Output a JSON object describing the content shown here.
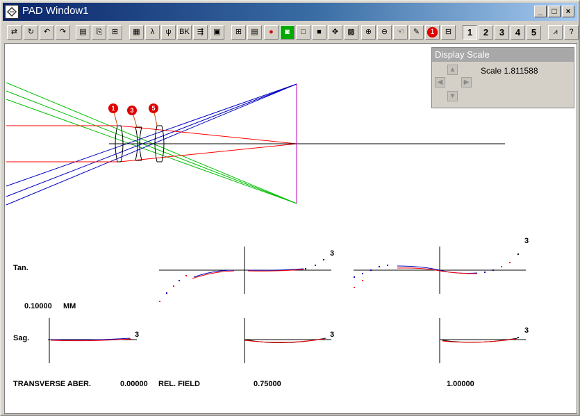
{
  "window": {
    "title": "PAD Window1"
  },
  "window_controls": {
    "minimize": "_",
    "maximize": "□",
    "close": "×"
  },
  "toolbar": {
    "buttons": [
      {
        "name": "adjust-icon",
        "glyph": "⇄"
      },
      {
        "name": "refresh-icon",
        "glyph": "↻"
      },
      {
        "name": "undo-icon",
        "glyph": "↶"
      },
      {
        "name": "redo-icon",
        "glyph": "↷"
      },
      {
        "name": "print-icon",
        "glyph": "▤"
      },
      {
        "name": "copy-icon",
        "glyph": "⎘"
      },
      {
        "name": "fit-icon",
        "glyph": "⊞"
      },
      {
        "name": "lens-data-icon",
        "glyph": "▦"
      },
      {
        "name": "wavelength-icon",
        "glyph": "λ"
      },
      {
        "name": "field-icon",
        "glyph": "ψ"
      },
      {
        "name": "bk7-icon",
        "glyph": "BK"
      },
      {
        "name": "tree-icon",
        "glyph": "⇶"
      },
      {
        "name": "film-icon",
        "glyph": "▣"
      },
      {
        "name": "grid-icon",
        "glyph": "⊞"
      },
      {
        "name": "table-icon",
        "glyph": "▤"
      },
      {
        "name": "dots-icon",
        "glyph": "●"
      },
      {
        "name": "camera-icon",
        "glyph": "◙"
      },
      {
        "name": "white-square-icon",
        "glyph": "□"
      },
      {
        "name": "black-square-icon",
        "glyph": "■"
      },
      {
        "name": "move-icon",
        "glyph": "✥"
      },
      {
        "name": "gray-square-icon",
        "glyph": "▩"
      },
      {
        "name": "zoom-in-icon",
        "glyph": "⊕"
      },
      {
        "name": "zoom-out-icon",
        "glyph": "⊖"
      },
      {
        "name": "pan-icon",
        "glyph": "☜"
      },
      {
        "name": "pencil-icon",
        "glyph": "✎"
      },
      {
        "name": "surface-marker-icon",
        "glyph": "1"
      },
      {
        "name": "ruler-icon",
        "glyph": "⊟"
      },
      {
        "name": "page-1-button",
        "glyph": "1"
      },
      {
        "name": "page-2-button",
        "glyph": "2"
      },
      {
        "name": "page-3-button",
        "glyph": "3"
      },
      {
        "name": "page-4-button",
        "glyph": "4"
      },
      {
        "name": "page-5-button",
        "glyph": "5"
      },
      {
        "name": "chart-icon",
        "glyph": "⩘"
      },
      {
        "name": "help-icon",
        "glyph": "?"
      }
    ]
  },
  "display_scale": {
    "title": "Display Scale",
    "value_text": "Scale 1.811588",
    "arrows": {
      "up": "▲",
      "left": "◀",
      "right": "▶",
      "down": "▼"
    }
  },
  "surface_markers": [
    "1",
    "3",
    "5"
  ],
  "aberration": {
    "tan_label": "Tan.",
    "sag_label": "Sag.",
    "scale_value": "0.10000",
    "scale_unit": "MM",
    "bottom_label": "TRANSVERSE ABER.",
    "field_label": "REL. FIELD",
    "fields": [
      "0.00000",
      "0.75000",
      "1.00000"
    ],
    "plot_tags": [
      "3",
      "3",
      "3",
      "3",
      "3"
    ]
  },
  "colors": {
    "marginal": "#ff0000",
    "chief_blue": "#0000c0",
    "edge_green": "#00c000",
    "image_plane": "#c000c0",
    "marker": "#e00000"
  }
}
